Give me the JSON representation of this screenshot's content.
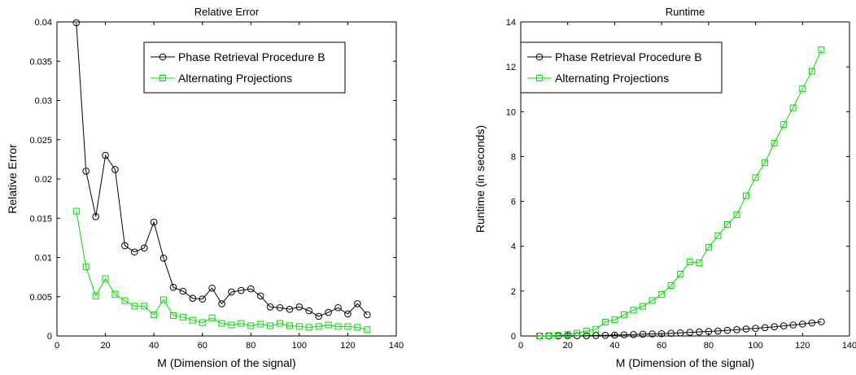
{
  "chart_data": [
    {
      "type": "line",
      "title": "Relative Error",
      "xlabel": "M (Dimension of the signal)",
      "ylabel": "Relative Error",
      "xlim": [
        0,
        140
      ],
      "ylim": [
        0,
        0.04
      ],
      "xticks": [
        0,
        20,
        40,
        60,
        80,
        100,
        120,
        140
      ],
      "yticks": [
        0,
        0.005,
        0.01,
        0.015,
        0.02,
        0.025,
        0.03,
        0.035,
        0.04
      ],
      "ytick_labels": [
        "0",
        "0.005",
        "0.01",
        "0.015",
        "0.02",
        "0.025",
        "0.03",
        "0.035",
        "0.04"
      ],
      "legend_position": "top-right",
      "grid": false,
      "x": [
        8,
        12,
        16,
        20,
        24,
        28,
        32,
        36,
        40,
        44,
        48,
        52,
        56,
        60,
        64,
        68,
        72,
        76,
        80,
        84,
        88,
        92,
        96,
        100,
        104,
        108,
        112,
        116,
        120,
        124,
        128
      ],
      "series": [
        {
          "name": "Phase Retrieval Procedure B",
          "color": "#000000",
          "marker": "circle",
          "values": [
            0.0399,
            0.021,
            0.0152,
            0.023,
            0.0212,
            0.0115,
            0.0107,
            0.0112,
            0.0145,
            0.0099,
            0.0062,
            0.0057,
            0.0048,
            0.0047,
            0.0061,
            0.0041,
            0.0056,
            0.0058,
            0.006,
            0.0051,
            0.0037,
            0.0036,
            0.0034,
            0.0037,
            0.0032,
            0.0025,
            0.003,
            0.0036,
            0.0028,
            0.0041,
            0.0027
          ]
        },
        {
          "name": "Alternating Projections",
          "color": "#00dd00",
          "marker": "square",
          "values": [
            0.0159,
            0.0088,
            0.0051,
            0.0073,
            0.0053,
            0.0045,
            0.0038,
            0.0038,
            0.0027,
            0.0046,
            0.0026,
            0.0024,
            0.002,
            0.0017,
            0.0023,
            0.0016,
            0.0014,
            0.0016,
            0.0013,
            0.0015,
            0.0013,
            0.0016,
            0.0013,
            0.0012,
            0.0011,
            0.0012,
            0.0014,
            0.0012,
            0.0012,
            0.0011,
            0.0008
          ]
        }
      ]
    },
    {
      "type": "line",
      "title": "Runtime",
      "xlabel": "M (Dimension of the signal)",
      "ylabel": "Runtime (in seconds)",
      "xlim": [
        0,
        140
      ],
      "ylim": [
        0,
        14
      ],
      "xticks": [
        0,
        20,
        40,
        60,
        80,
        100,
        120,
        140
      ],
      "yticks": [
        0,
        2,
        4,
        6,
        8,
        10,
        12,
        14
      ],
      "ytick_labels": [
        "0",
        "2",
        "4",
        "6",
        "8",
        "10",
        "12",
        "14"
      ],
      "legend_position": "top-left",
      "grid": false,
      "x": [
        8,
        12,
        16,
        20,
        24,
        28,
        32,
        36,
        40,
        44,
        48,
        52,
        56,
        60,
        64,
        68,
        72,
        76,
        80,
        84,
        88,
        92,
        96,
        100,
        104,
        108,
        112,
        116,
        120,
        124,
        128
      ],
      "series": [
        {
          "name": "Phase Retrieval Procedure B",
          "color": "#000000",
          "marker": "circle",
          "values": [
            0.0,
            0.0,
            0.0,
            0.01,
            0.01,
            0.01,
            0.02,
            0.03,
            0.04,
            0.05,
            0.06,
            0.08,
            0.09,
            0.1,
            0.12,
            0.14,
            0.16,
            0.18,
            0.2,
            0.22,
            0.25,
            0.28,
            0.31,
            0.34,
            0.37,
            0.41,
            0.45,
            0.49,
            0.53,
            0.58,
            0.63
          ]
        },
        {
          "name": "Alternating Projections",
          "color": "#00dd00",
          "marker": "square",
          "values": [
            0.0,
            0.01,
            0.03,
            0.07,
            0.13,
            0.22,
            0.3,
            0.62,
            0.72,
            0.95,
            1.15,
            1.32,
            1.58,
            1.85,
            2.25,
            2.76,
            3.3,
            3.26,
            3.95,
            4.47,
            4.97,
            5.4,
            6.25,
            7.06,
            7.72,
            8.6,
            9.43,
            10.17,
            11.02,
            11.8,
            12.76
          ]
        }
      ]
    }
  ]
}
